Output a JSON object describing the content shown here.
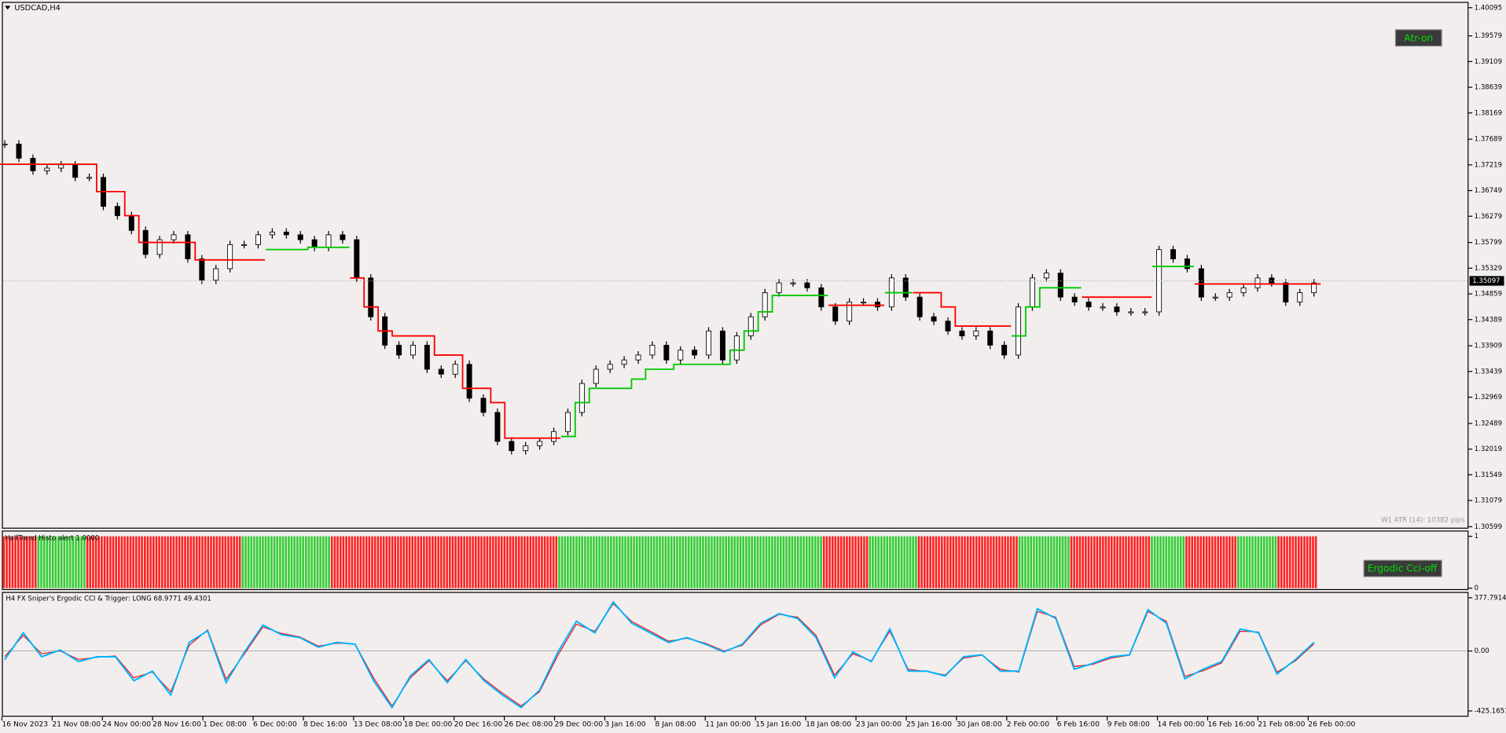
{
  "window": {
    "symbol": "USDCAD,H4",
    "atr_button": "Atr-on",
    "atr_info": "W1 ATR (14): 10382 pips",
    "histo_label": "HalfTrend Histo alert 1.0000",
    "ergodic_button": "Ergodic Cci-off",
    "cci_label": "H4 FX Sniper's Ergodic CCI & Trigger: LONG 68.9771 49.4301"
  },
  "price_panel": {
    "ylim": [
      1.30599,
      1.40095
    ],
    "yticks": [
      1.40095,
      1.39579,
      1.39109,
      1.38639,
      1.38169,
      1.37689,
      1.37219,
      1.36749,
      1.36279,
      1.35799,
      1.35329,
      1.34859,
      1.34389,
      1.33909,
      1.33439,
      1.32969,
      1.32489,
      1.32019,
      1.31549,
      1.31079,
      1.30599
    ],
    "current_price": 1.35097,
    "closes": [
      1.376,
      1.3734,
      1.3711,
      1.3716,
      1.3722,
      1.3699,
      1.3699,
      1.3646,
      1.3629,
      1.3602,
      1.3558,
      1.3585,
      1.3594,
      1.355,
      1.3511,
      1.3532,
      1.3576,
      1.3576,
      1.3594,
      1.3599,
      1.3594,
      1.3585,
      1.3571,
      1.3594,
      1.3585,
      1.3515,
      1.3444,
      1.3392,
      1.3374,
      1.3392,
      1.3348,
      1.3339,
      1.3357,
      1.3295,
      1.3269,
      1.3216,
      1.3199,
      1.3208,
      1.3216,
      1.3234,
      1.3269,
      1.3322,
      1.3348,
      1.3357,
      1.3365,
      1.3374,
      1.3392,
      1.3365,
      1.3383,
      1.3374,
      1.3418,
      1.3365,
      1.3409,
      1.3444,
      1.3488,
      1.3506,
      1.3506,
      1.3497,
      1.3462,
      1.3436,
      1.3471,
      1.3471,
      1.3462,
      1.3515,
      1.348,
      1.3444,
      1.3436,
      1.3418,
      1.3409,
      1.3418,
      1.3392,
      1.3374,
      1.3462,
      1.3515,
      1.3524,
      1.348,
      1.3471,
      1.3462,
      1.3462,
      1.3453,
      1.3453,
      1.3453,
      1.3567,
      1.355,
      1.3532,
      1.348,
      1.348,
      1.3488,
      1.3497,
      1.3515,
      1.3506,
      1.3471,
      1.3488,
      1.3506
    ],
    "stops": [
      {
        "color": "#ff0000",
        "values": [
          1.3723,
          1.3723,
          1.3723,
          1.3723,
          1.3723,
          1.3723,
          1.3723,
          1.3673,
          1.3673,
          1.3629,
          1.358,
          1.358,
          1.358,
          1.358,
          1.3548,
          1.3548,
          1.3548,
          1.3548,
          1.3548,
          null,
          null,
          null,
          null,
          null,
          null,
          1.3515,
          1.3462,
          1.3418,
          1.3409,
          1.3409,
          1.3409,
          1.3374,
          1.3374,
          1.3313,
          1.3313,
          1.3287,
          1.3222,
          1.3222,
          1.3222,
          1.3222,
          null,
          null,
          null,
          null,
          null,
          null,
          null,
          null,
          null,
          null,
          null,
          null,
          null,
          null,
          null,
          null,
          null,
          null,
          null,
          1.3465,
          1.3465,
          1.3465,
          1.3465,
          null,
          null,
          1.3488,
          1.3488,
          1.3462,
          1.3427,
          1.3427,
          1.3427,
          1.3427,
          null,
          null,
          null,
          null,
          null,
          1.348,
          1.348,
          1.348,
          1.348,
          1.348,
          null,
          null,
          null,
          1.3504,
          1.3504,
          1.3504,
          1.3504,
          1.3504,
          1.3504,
          1.3504,
          1.3504,
          1.3504
        ]
      },
      {
        "color": "#00c800",
        "values": [
          null,
          null,
          null,
          null,
          null,
          null,
          null,
          null,
          null,
          null,
          null,
          null,
          null,
          null,
          null,
          null,
          null,
          null,
          null,
          1.3567,
          1.3567,
          1.3567,
          1.3571,
          1.3571,
          1.3571,
          null,
          null,
          null,
          null,
          null,
          null,
          null,
          null,
          null,
          null,
          null,
          null,
          null,
          null,
          null,
          1.3225,
          1.3287,
          1.3313,
          1.3313,
          1.3313,
          1.333,
          1.3348,
          1.3348,
          1.3357,
          1.3357,
          1.3357,
          1.3357,
          1.3383,
          1.3418,
          1.3453,
          1.3483,
          1.3483,
          1.3483,
          1.3483,
          null,
          null,
          null,
          null,
          1.3488,
          1.3488,
          null,
          null,
          null,
          null,
          null,
          null,
          null,
          1.3409,
          1.3462,
          1.3497,
          1.3497,
          1.3497,
          null,
          null,
          null,
          null,
          null,
          1.3536,
          1.3536,
          1.3536,
          null,
          null,
          null,
          null,
          null,
          null,
          null,
          null,
          null
        ]
      }
    ]
  },
  "histo_panel": {
    "yticks": [
      1,
      0
    ],
    "segments": [
      {
        "color": "#ff2020",
        "bars": 12
      },
      {
        "color": "#32cd32",
        "bars": 17
      },
      {
        "color": "#ff2020",
        "bars": 54
      },
      {
        "color": "#32cd32",
        "bars": 31
      },
      {
        "color": "#ff2020",
        "bars": 79
      },
      {
        "color": "#32cd32",
        "bars": 92
      },
      {
        "color": "#ff2020",
        "bars": 16
      },
      {
        "color": "#32cd32",
        "bars": 17
      },
      {
        "color": "#ff2020",
        "bars": 35
      },
      {
        "color": "#32cd32",
        "bars": 18
      },
      {
        "color": "#ff2020",
        "bars": 28
      },
      {
        "color": "#32cd32",
        "bars": 12
      },
      {
        "color": "#ff2020",
        "bars": 18
      },
      {
        "color": "#32cd32",
        "bars": 14
      },
      {
        "color": "#ff2020",
        "bars": 14
      }
    ]
  },
  "cci_panel": {
    "ylim": [
      -425.1651,
      377.7914
    ],
    "yticks": [
      377.7914,
      {
        "value": 0,
        "label": "0.00"
      },
      -425.1651
    ],
    "series": [
      {
        "color": "#00b4ff",
        "values": [
          -61,
          129,
          -41,
          7,
          -75,
          -41,
          -41,
          -211,
          -143,
          -313,
          61,
          143,
          -224,
          -7,
          184,
          116,
          95,
          27,
          61,
          48,
          -211,
          -401,
          -177,
          -61,
          -224,
          -61,
          -211,
          -313,
          -401,
          -279,
          -7,
          211,
          129,
          347,
          197,
          129,
          61,
          95,
          48,
          -7,
          48,
          197,
          265,
          231,
          95,
          -190,
          -7,
          -75,
          156,
          -143,
          -143,
          -177,
          -41,
          -27,
          -143,
          -143,
          299,
          231,
          -129,
          -88,
          -41,
          -27,
          293,
          197,
          -197,
          -129,
          -75,
          156,
          129,
          -163,
          -61,
          61
        ]
      },
      {
        "color": "#ff0000",
        "values": [
          -40,
          110,
          -20,
          0,
          -60,
          -45,
          -35,
          -190,
          -150,
          -290,
          40,
          150,
          -200,
          -20,
          170,
          125,
          100,
          35,
          55,
          50,
          -190,
          -390,
          -190,
          -70,
          -210,
          -70,
          -200,
          -300,
          -390,
          -290,
          -30,
          190,
          140,
          335,
          210,
          140,
          70,
          90,
          55,
          0,
          40,
          185,
          260,
          240,
          110,
          -170,
          -20,
          -70,
          140,
          -130,
          -145,
          -170,
          -50,
          -30,
          -130,
          -150,
          280,
          240,
          -110,
          -95,
          -50,
          -30,
          280,
          210,
          -180,
          -140,
          -85,
          140,
          135,
          -150,
          -70,
          50
        ]
      }
    ]
  },
  "time_axis": {
    "labels": [
      "16 Nov 2023",
      "21 Nov 08:00",
      "24 Nov 00:00",
      "28 Nov 16:00",
      "1 Dec 08:00",
      "6 Dec 00:00",
      "8 Dec 16:00",
      "13 Dec 08:00",
      "18 Dec 00:00",
      "20 Dec 16:00",
      "26 Dec 08:00",
      "29 Dec 00:00",
      "3 Jan 16:00",
      "8 Jan 08:00",
      "11 Jan 00:00",
      "15 Jan 16:00",
      "18 Jan 08:00",
      "23 Jan 00:00",
      "25 Jan 16:00",
      "30 Jan 08:00",
      "2 Feb 00:00",
      "6 Feb 16:00",
      "9 Feb 08:00",
      "14 Feb 00:00",
      "16 Feb 16:00",
      "21 Feb 08:00",
      "26 Feb 00:00"
    ]
  }
}
